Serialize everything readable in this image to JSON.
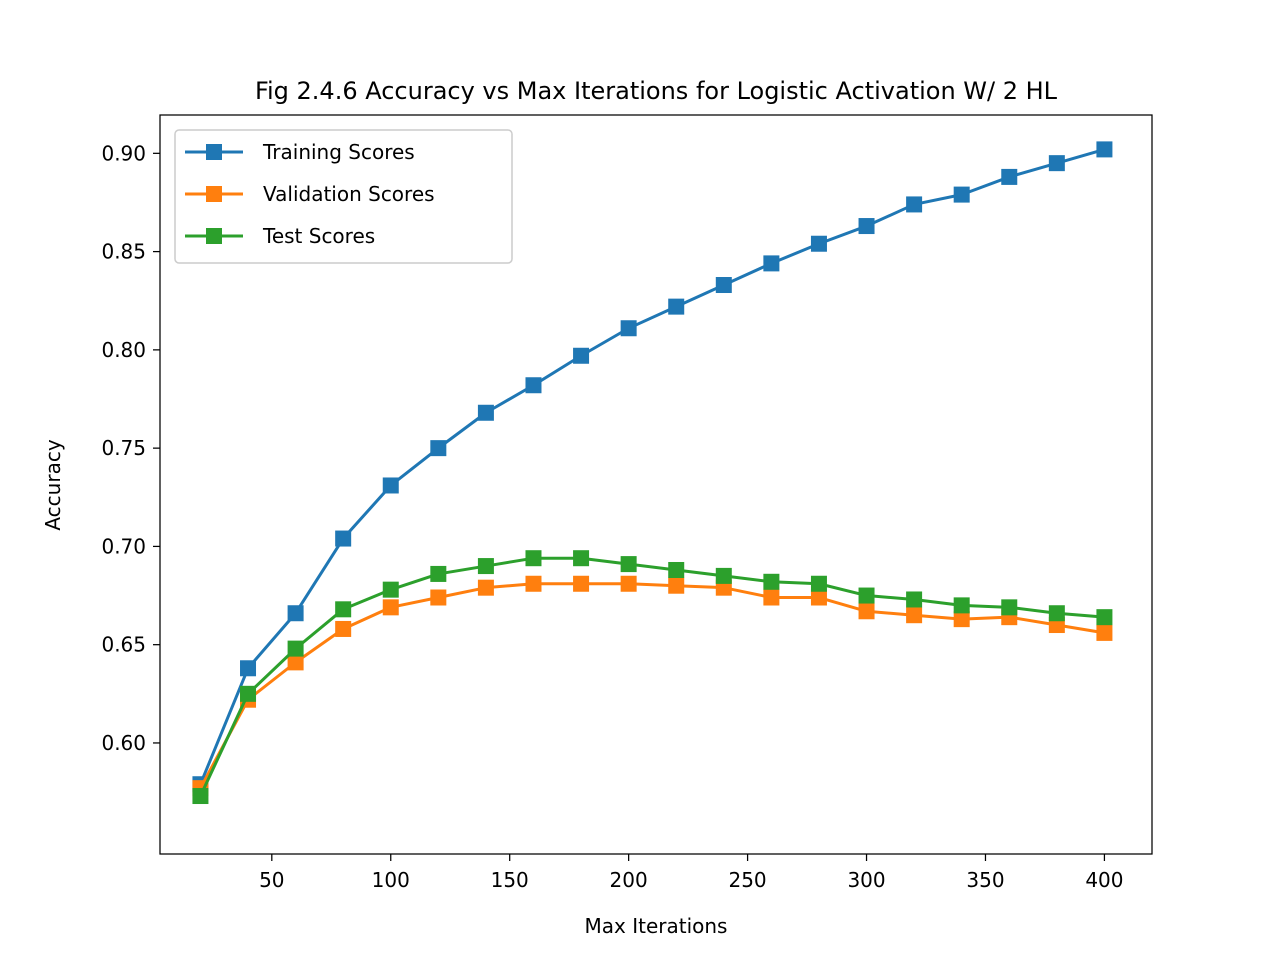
{
  "chart_data": {
    "type": "line",
    "title": "Fig 2.4.6 Accuracy vs Max Iterations for Logistic Activation W/ 2 HL",
    "xlabel": "Max Iterations",
    "ylabel": "Accuracy",
    "xlim": [
      3,
      420
    ],
    "ylim": [
      0.5435,
      0.9195
    ],
    "xticks": [
      50,
      100,
      150,
      200,
      250,
      300,
      350,
      400
    ],
    "xtick_labels": [
      "50",
      "100",
      "150",
      "200",
      "250",
      "300",
      "350",
      "400"
    ],
    "yticks": [
      0.6,
      0.65,
      0.7,
      0.75,
      0.8,
      0.85,
      0.9
    ],
    "ytick_labels": [
      "0.60",
      "0.65",
      "0.70",
      "0.75",
      "0.80",
      "0.85",
      "0.90"
    ],
    "grid": false,
    "legend": "top-left",
    "marker": "square",
    "x": [
      20,
      40,
      60,
      80,
      100,
      120,
      140,
      160,
      180,
      200,
      220,
      240,
      260,
      280,
      300,
      320,
      340,
      360,
      380,
      400
    ],
    "series": [
      {
        "name": "Training Scores",
        "color": "#1f77b4",
        "values": [
          0.579,
          0.638,
          0.666,
          0.704,
          0.731,
          0.75,
          0.768,
          0.782,
          0.797,
          0.811,
          0.822,
          0.833,
          0.844,
          0.854,
          0.863,
          0.874,
          0.879,
          0.888,
          0.895,
          0.902
        ]
      },
      {
        "name": "Validation Scores",
        "color": "#ff7f0e",
        "values": [
          0.577,
          0.622,
          0.641,
          0.658,
          0.669,
          0.674,
          0.679,
          0.681,
          0.681,
          0.681,
          0.68,
          0.679,
          0.674,
          0.674,
          0.667,
          0.665,
          0.663,
          0.664,
          0.66,
          0.656
        ]
      },
      {
        "name": "Test Scores",
        "color": "#2ca02c",
        "values": [
          0.573,
          0.625,
          0.648,
          0.668,
          0.678,
          0.686,
          0.69,
          0.694,
          0.694,
          0.691,
          0.688,
          0.685,
          0.682,
          0.681,
          0.675,
          0.673,
          0.67,
          0.669,
          0.666,
          0.664
        ]
      }
    ]
  }
}
